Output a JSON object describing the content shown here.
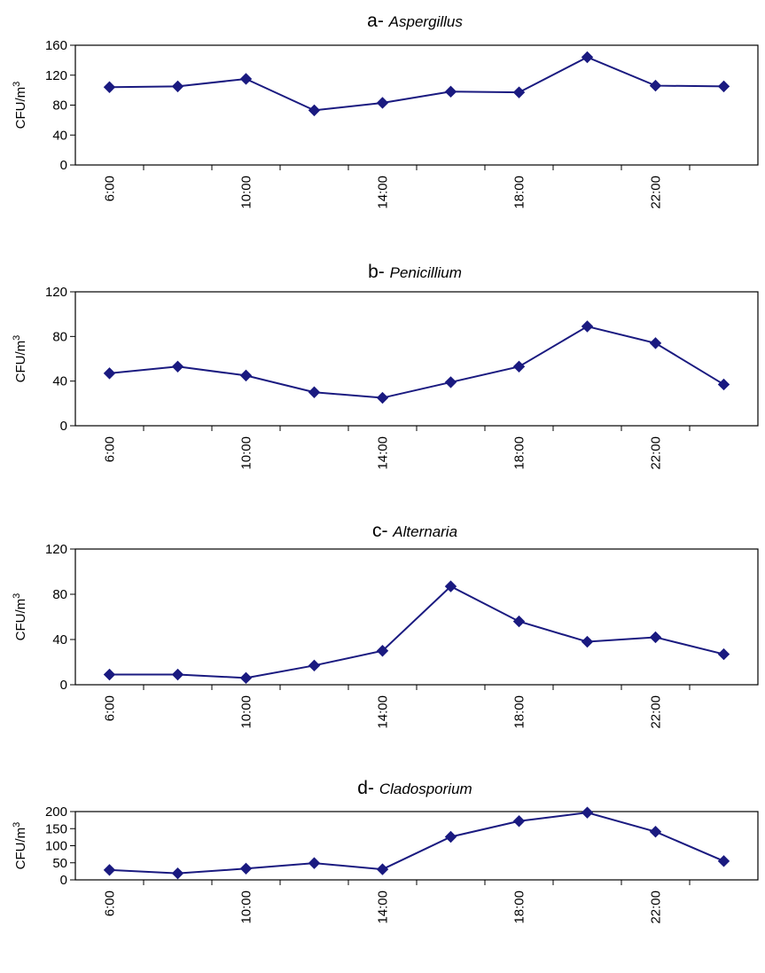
{
  "colors": {
    "series": "#1a1a80",
    "axis": "#000000"
  },
  "y_axis_label": "CFU/m",
  "y_axis_label_sup": "3",
  "chart_data": [
    {
      "type": "line",
      "prefix": "a-",
      "genus": "Aspergillus",
      "x": [
        "6:00",
        "8:00",
        "10:00",
        "12:00",
        "14:00",
        "16:00",
        "18:00",
        "20:00",
        "22:00",
        "24:00"
      ],
      "x_tick_labels": [
        "6:00",
        "10:00",
        "14:00",
        "18:00",
        "22:00"
      ],
      "values": [
        104,
        105,
        115,
        73,
        83,
        98,
        97,
        144,
        106,
        105
      ],
      "ylim": [
        0,
        160
      ],
      "yticks": [
        0,
        40,
        80,
        120,
        160
      ],
      "grid": false
    },
    {
      "type": "line",
      "prefix": "b-",
      "genus": "Penicillium",
      "x": [
        "6:00",
        "8:00",
        "10:00",
        "12:00",
        "14:00",
        "16:00",
        "18:00",
        "20:00",
        "22:00",
        "24:00"
      ],
      "x_tick_labels": [
        "6:00",
        "10:00",
        "14:00",
        "18:00",
        "22:00"
      ],
      "values": [
        47,
        53,
        45,
        30,
        25,
        39,
        53,
        89,
        74,
        37
      ],
      "ylim": [
        0,
        120
      ],
      "yticks": [
        0,
        40,
        80,
        120
      ],
      "grid": false
    },
    {
      "type": "line",
      "prefix": "c-",
      "genus": "Alternaria",
      "x": [
        "6:00",
        "8:00",
        "10:00",
        "12:00",
        "14:00",
        "16:00",
        "18:00",
        "20:00",
        "22:00",
        "24:00"
      ],
      "x_tick_labels": [
        "6:00",
        "10:00",
        "14:00",
        "18:00",
        "22:00"
      ],
      "values": [
        9,
        9,
        6,
        17,
        30,
        87,
        56,
        38,
        42,
        27
      ],
      "ylim": [
        0,
        120
      ],
      "yticks": [
        0,
        40,
        80,
        120
      ],
      "grid": false
    },
    {
      "type": "line",
      "prefix": "d-",
      "genus": "Cladosporium",
      "x": [
        "6:00",
        "8:00",
        "10:00",
        "12:00",
        "14:00",
        "16:00",
        "18:00",
        "20:00",
        "22:00",
        "24:00"
      ],
      "x_tick_labels": [
        "6:00",
        "10:00",
        "14:00",
        "18:00",
        "22:00"
      ],
      "values": [
        29,
        19,
        33,
        49,
        31,
        126,
        172,
        197,
        141,
        55
      ],
      "ylim": [
        0,
        200
      ],
      "yticks": [
        0,
        50,
        100,
        150,
        200
      ],
      "grid": false
    }
  ]
}
